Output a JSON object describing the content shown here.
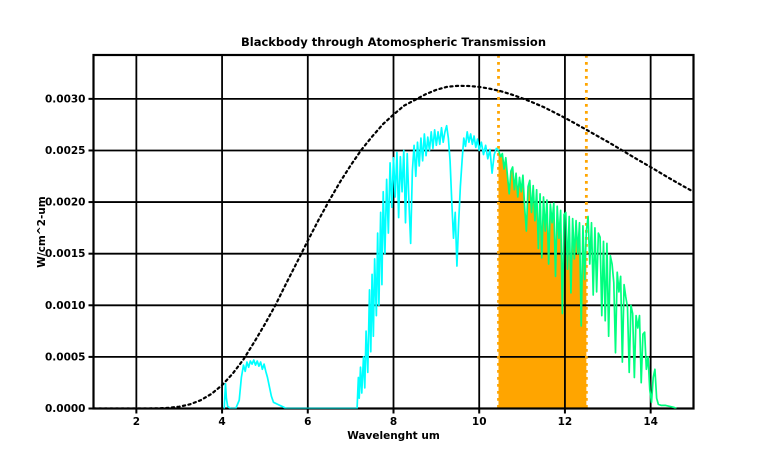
{
  "chart_data": {
    "type": "line",
    "title": "Blackbody through Atomospheric Transmission",
    "xlabel": "Wavelenght um",
    "ylabel": "W/cm^2-um",
    "xlim": [
      1,
      15
    ],
    "ylim": [
      0,
      0.003425
    ],
    "xticks": [
      2,
      4,
      6,
      8,
      10,
      12,
      14
    ],
    "yticks": [
      0.0,
      0.0005,
      0.001,
      0.0015,
      0.002,
      0.0025,
      0.003
    ],
    "ytick_decimals": 4,
    "grid": true,
    "legend": null,
    "colors": {
      "background": "#FFFFFF",
      "grid": "#000000",
      "spine": "#000000",
      "blackbody_curve": "#000000",
      "transmission_cyan": "#00FFFF",
      "transmission_green": "#00FF7F",
      "band_fill": "#FFA500",
      "band_edge_lines": "#FFA500"
    },
    "band": {
      "x_start": 10.45,
      "x_end": 12.5,
      "fill_color": "#FFA500",
      "edge_line_style": "dotted"
    },
    "series": [
      {
        "name": "blackbody_envelope_dotted",
        "color": "#000000",
        "line_style": "dotted",
        "points": [
          [
            1.0,
            0
          ],
          [
            1.25,
            0
          ],
          [
            1.5,
            0
          ],
          [
            1.75,
            0
          ],
          [
            2.0,
            0
          ],
          [
            2.25,
            4e-07
          ],
          [
            2.5,
            1.8e-06
          ],
          [
            2.75,
            6.2e-06
          ],
          [
            3.0,
            1.75e-05
          ],
          [
            3.25,
            4.05e-05
          ],
          [
            3.5,
            7.97e-05
          ],
          [
            3.75,
            0.000141
          ],
          [
            4.0,
            0.000226
          ],
          [
            4.25,
            0.000339
          ],
          [
            4.5,
            0.000476
          ],
          [
            4.75,
            0.000643
          ],
          [
            5.0,
            0.000818
          ],
          [
            5.25,
            0.001005
          ],
          [
            5.5,
            0.001215
          ],
          [
            5.75,
            0.001418
          ],
          [
            6.0,
            0.001625
          ],
          [
            6.25,
            0.001826
          ],
          [
            6.5,
            0.002014
          ],
          [
            6.75,
            0.002193
          ],
          [
            7.0,
            0.002355
          ],
          [
            7.25,
            0.002506
          ],
          [
            7.5,
            0.002634
          ],
          [
            7.75,
            0.002753
          ],
          [
            8.0,
            0.002848
          ],
          [
            8.25,
            0.002935
          ],
          [
            8.5,
            0.002989
          ],
          [
            8.75,
            0.003045
          ],
          [
            9.0,
            0.003088
          ],
          [
            9.25,
            0.003117
          ],
          [
            9.5,
            0.003126
          ],
          [
            9.75,
            0.003125
          ],
          [
            10.0,
            0.003116
          ],
          [
            10.25,
            0.003098
          ],
          [
            10.5,
            0.003075
          ],
          [
            10.75,
            0.003043
          ],
          [
            11.0,
            0.003006
          ],
          [
            11.25,
            0.002965
          ],
          [
            11.5,
            0.002921
          ],
          [
            11.75,
            0.002869
          ],
          [
            12.0,
            0.002816
          ],
          [
            12.25,
            0.002759
          ],
          [
            12.5,
            0.002701
          ],
          [
            12.75,
            0.002642
          ],
          [
            13.0,
            0.002584
          ],
          [
            13.25,
            0.002522
          ],
          [
            13.5,
            0.00246
          ],
          [
            13.75,
            0.002399
          ],
          [
            14.0,
            0.002339
          ],
          [
            14.25,
            0.002277
          ],
          [
            14.5,
            0.002216
          ],
          [
            14.75,
            0.002157
          ],
          [
            15.0,
            0.0021
          ]
        ]
      },
      {
        "name": "transmission_cyan",
        "color": "#00FFFF",
        "line_style": "solid",
        "points": [
          [
            4.05,
            0
          ],
          [
            4.08,
            0.00024
          ],
          [
            4.1,
            0.0001
          ],
          [
            4.13,
            2e-05
          ],
          [
            4.2,
            0
          ],
          [
            4.32,
            0
          ],
          [
            4.4,
            8e-05
          ],
          [
            4.45,
            0.0003
          ],
          [
            4.5,
            0.00042
          ],
          [
            4.54,
            0.00036
          ],
          [
            4.58,
            0.00045
          ],
          [
            4.62,
            0.0004
          ],
          [
            4.66,
            0.00046
          ],
          [
            4.7,
            0.00043
          ],
          [
            4.74,
            0.00047
          ],
          [
            4.78,
            0.00042
          ],
          [
            4.82,
            0.00046
          ],
          [
            4.86,
            0.00041
          ],
          [
            4.9,
            0.00045
          ],
          [
            4.94,
            0.00038
          ],
          [
            4.98,
            0.00043
          ],
          [
            5.02,
            0.00036
          ],
          [
            5.06,
            0.0003
          ],
          [
            5.1,
            0.00022
          ],
          [
            5.15,
            0.00012
          ],
          [
            5.2,
            6e-05
          ],
          [
            5.3,
            4e-05
          ],
          [
            5.4,
            2e-05
          ],
          [
            5.5,
            0
          ],
          [
            6.0,
            0
          ],
          [
            6.5,
            0
          ],
          [
            7.0,
            0
          ],
          [
            7.15,
            0
          ],
          [
            7.18,
            0.0003
          ],
          [
            7.2,
            0.0001
          ],
          [
            7.23,
            0.0004
          ],
          [
            7.26,
            0.00015
          ],
          [
            7.3,
            0.0005
          ],
          [
            7.33,
            0.0002
          ],
          [
            7.36,
            0.00075
          ],
          [
            7.4,
            0.00035
          ],
          [
            7.44,
            0.00115
          ],
          [
            7.47,
            0.00055
          ],
          [
            7.5,
            0.0013
          ],
          [
            7.53,
            0.0007
          ],
          [
            7.56,
            0.00145
          ],
          [
            7.6,
            0.0009
          ],
          [
            7.63,
            0.0017
          ],
          [
            7.66,
            0.001
          ],
          [
            7.7,
            0.0019
          ],
          [
            7.73,
            0.0012
          ],
          [
            7.76,
            0.0021
          ],
          [
            7.8,
            0.0015
          ],
          [
            7.84,
            0.00222
          ],
          [
            7.88,
            0.0017
          ],
          [
            7.92,
            0.00238
          ],
          [
            7.96,
            0.00195
          ],
          [
            8.0,
            0.00243
          ],
          [
            8.04,
            0.00205
          ],
          [
            8.08,
            0.00248
          ],
          [
            8.12,
            0.00185
          ],
          [
            8.16,
            0.00244
          ],
          [
            8.2,
            0.0021
          ],
          [
            8.24,
            0.0025
          ],
          [
            8.28,
            0.0018
          ],
          [
            8.32,
            0.00247
          ],
          [
            8.36,
            0.002
          ],
          [
            8.4,
            0.0016
          ],
          [
            8.44,
            0.0023
          ],
          [
            8.48,
            0.00255
          ],
          [
            8.52,
            0.00225
          ],
          [
            8.56,
            0.00258
          ],
          [
            8.6,
            0.00235
          ],
          [
            8.64,
            0.00262
          ],
          [
            8.68,
            0.0024
          ],
          [
            8.72,
            0.00266
          ],
          [
            8.76,
            0.00245
          ],
          [
            8.8,
            0.00263
          ],
          [
            8.84,
            0.0025
          ],
          [
            8.88,
            0.00268
          ],
          [
            8.92,
            0.00252
          ],
          [
            8.96,
            0.0027
          ],
          [
            9.0,
            0.00255
          ],
          [
            9.04,
            0.00268
          ],
          [
            9.08,
            0.00256
          ],
          [
            9.12,
            0.00272
          ],
          [
            9.16,
            0.00258
          ],
          [
            9.2,
            0.00268
          ],
          [
            9.24,
            0.00274
          ],
          [
            9.28,
            0.00262
          ],
          [
            9.32,
            0.0024
          ],
          [
            9.36,
            0.002
          ],
          [
            9.4,
            0.00165
          ],
          [
            9.44,
            0.0019
          ],
          [
            9.48,
            0.00138
          ],
          [
            9.52,
            0.0018
          ],
          [
            9.56,
            0.00215
          ],
          [
            9.6,
            0.0024
          ],
          [
            9.64,
            0.00262
          ],
          [
            9.68,
            0.00254
          ],
          [
            9.72,
            0.00268
          ],
          [
            9.76,
            0.00258
          ],
          [
            9.8,
            0.00266
          ],
          [
            9.84,
            0.00256
          ],
          [
            9.88,
            0.00264
          ],
          [
            9.92,
            0.00253
          ],
          [
            9.96,
            0.00261
          ],
          [
            10.0,
            0.0025
          ],
          [
            10.05,
            0.00258
          ],
          [
            10.1,
            0.00246
          ],
          [
            10.15,
            0.00255
          ],
          [
            10.2,
            0.00242
          ],
          [
            10.25,
            0.00251
          ],
          [
            10.3,
            0.00228
          ],
          [
            10.35,
            0.00246
          ],
          [
            10.4,
            0.00252
          ],
          [
            10.45,
            0.0025
          ]
        ]
      },
      {
        "name": "transmission_green",
        "color": "#00FF7F",
        "line_style": "solid",
        "points": [
          [
            10.45,
            0.0025
          ],
          [
            10.5,
            0.00244
          ],
          [
            10.54,
            0.00247
          ],
          [
            10.58,
            0.00232
          ],
          [
            10.62,
            0.00243
          ],
          [
            10.66,
            0.00225
          ],
          [
            10.7,
            0.00208
          ],
          [
            10.74,
            0.0023
          ],
          [
            10.78,
            0.00234
          ],
          [
            10.82,
            0.00212
          ],
          [
            10.86,
            0.00228
          ],
          [
            10.9,
            0.00205
          ],
          [
            10.94,
            0.00224
          ],
          [
            10.98,
            0.0021
          ],
          [
            11.02,
            0.00226
          ],
          [
            11.06,
            0.00195
          ],
          [
            11.1,
            0.00172
          ],
          [
            11.14,
            0.00215
          ],
          [
            11.18,
            0.00221
          ],
          [
            11.22,
            0.0019
          ],
          [
            11.26,
            0.00216
          ],
          [
            11.3,
            0.00182
          ],
          [
            11.34,
            0.00212
          ],
          [
            11.38,
            0.00155
          ],
          [
            11.42,
            0.00208
          ],
          [
            11.46,
            0.00146
          ],
          [
            11.5,
            0.00205
          ],
          [
            11.54,
            0.00172
          ],
          [
            11.58,
            0.00202
          ],
          [
            11.62,
            0.0014
          ],
          [
            11.66,
            0.00198
          ],
          [
            11.7,
            0.0018
          ],
          [
            11.74,
            0.00199
          ],
          [
            11.78,
            0.00128
          ],
          [
            11.82,
            0.00196
          ],
          [
            11.86,
            0.00165
          ],
          [
            11.9,
            0.00192
          ],
          [
            11.94,
            0.00092
          ],
          [
            11.98,
            0.00188
          ],
          [
            12.02,
            0.0019
          ],
          [
            12.06,
            0.00135
          ],
          [
            12.1,
            0.00186
          ],
          [
            12.14,
            0.00112
          ],
          [
            12.18,
            0.00184
          ],
          [
            12.22,
            0.00145
          ],
          [
            12.26,
            0.00182
          ],
          [
            12.3,
            0.0015
          ],
          [
            12.34,
            0.0018
          ],
          [
            12.38,
            0.0008
          ],
          [
            12.42,
            0.00177
          ],
          [
            12.46,
            0.00125
          ],
          [
            12.5,
            0.00172
          ],
          [
            12.54,
            0.00186
          ],
          [
            12.58,
            0.0014
          ],
          [
            12.62,
            0.0018
          ],
          [
            12.66,
            0.0011
          ],
          [
            12.7,
            0.00175
          ],
          [
            12.74,
            0.00113
          ],
          [
            12.78,
            0.0017
          ],
          [
            12.82,
            0.00166
          ],
          [
            12.86,
            0.0009
          ],
          [
            12.9,
            0.00162
          ],
          [
            12.94,
            0.00085
          ],
          [
            12.98,
            0.0016
          ],
          [
            13.02,
            0.0007
          ],
          [
            13.06,
            0.00148
          ],
          [
            13.1,
            0.0014
          ],
          [
            13.14,
            0.00122
          ],
          [
            13.18,
            0.00054
          ],
          [
            13.22,
            0.00132
          ],
          [
            13.26,
            0.00113
          ],
          [
            13.3,
            0.00128
          ],
          [
            13.34,
            0.00045
          ],
          [
            13.38,
            0.0012
          ],
          [
            13.42,
            0.00108
          ],
          [
            13.46,
            0.00098
          ],
          [
            13.5,
            0.00035
          ],
          [
            13.54,
            0.001
          ],
          [
            13.58,
            0.00092
          ],
          [
            13.62,
            0.0003
          ],
          [
            13.66,
            0.0009
          ],
          [
            13.7,
            0.00078
          ],
          [
            13.74,
            0.0009
          ],
          [
            13.78,
            0.00025
          ],
          [
            13.82,
            0.00072
          ],
          [
            13.86,
            0.00074
          ],
          [
            13.9,
            0.00038
          ],
          [
            13.94,
            0.0005
          ],
          [
            13.98,
            0.00018
          ],
          [
            14.02,
            6e-05
          ],
          [
            14.06,
            0.0003
          ],
          [
            14.1,
            0.00038
          ],
          [
            14.14,
            0.0001
          ],
          [
            14.18,
            4e-05
          ],
          [
            14.25,
            3e-05
          ],
          [
            14.35,
            3e-05
          ],
          [
            14.45,
            2e-05
          ],
          [
            14.55,
            1e-05
          ],
          [
            14.6,
            0
          ]
        ]
      }
    ]
  }
}
